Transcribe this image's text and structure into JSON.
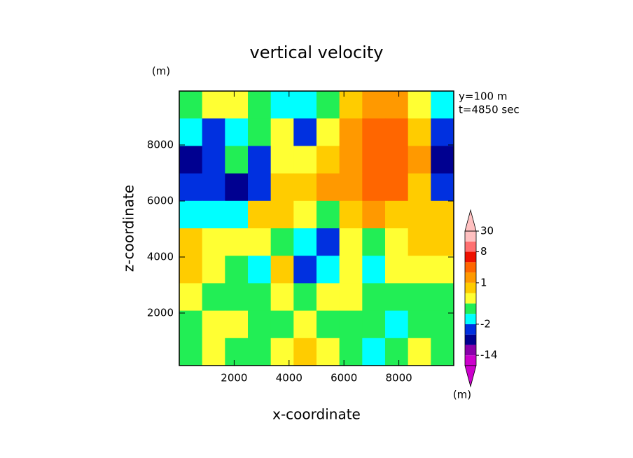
{
  "chart_data": {
    "type": "contour",
    "title": "vertical velocity",
    "subtitle_lines": [
      "y=100 m",
      "t=4850 sec"
    ],
    "x_label": "x-coordinate",
    "y_label": "z-coordinate",
    "x_unit": "(m)",
    "colorbar_unit": "(m)",
    "xlim": [
      0,
      10000
    ],
    "ylim": [
      125,
      9925
    ],
    "xticks": [
      2000,
      4000,
      6000,
      8000
    ],
    "yticks": [
      2000,
      4000,
      6000,
      8000
    ],
    "x": [
      417,
      1250,
      2083,
      2917,
      3750,
      4583,
      5417,
      6250,
      7083,
      7917,
      8750,
      9583
    ],
    "y": [
      9435,
      8455,
      7475,
      6495,
      5515,
      4535,
      3555,
      2575,
      1595,
      615
    ],
    "z": [
      [
        -0.5,
        0.2,
        0.2,
        -0.5,
        -1.5,
        -1.5,
        -0.5,
        0.7,
        1.5,
        1.5,
        0.2,
        -1.5
      ],
      [
        -1.5,
        -3,
        -1.5,
        -0.5,
        0.2,
        -3,
        0.2,
        1.5,
        3,
        3,
        0.7,
        -3
      ],
      [
        -6,
        -3,
        -0.5,
        -3,
        0.2,
        0.2,
        0.7,
        1.5,
        3,
        3,
        1.5,
        -6
      ],
      [
        -3,
        -3,
        -6,
        -3,
        0.7,
        0.7,
        1.5,
        1.5,
        3,
        3,
        0.7,
        -3
      ],
      [
        -1.5,
        -1.5,
        -1.5,
        0.7,
        0.7,
        0.2,
        -0.5,
        0.7,
        1.5,
        0.7,
        0.7,
        0.7
      ],
      [
        0.7,
        0.2,
        0.2,
        0.2,
        -0.5,
        -1.5,
        -3,
        0.2,
        -0.5,
        0.2,
        0.7,
        0.7
      ],
      [
        0.7,
        0.2,
        -0.5,
        -1.5,
        0.7,
        -3,
        -1.5,
        0.2,
        -1.5,
        0.2,
        0.2,
        0.2
      ],
      [
        0.2,
        -0.5,
        -0.5,
        -0.5,
        0.2,
        -0.5,
        0.2,
        0.2,
        -0.5,
        -0.5,
        -0.5,
        -0.5
      ],
      [
        -0.5,
        0.2,
        0.2,
        -0.5,
        -0.5,
        0.2,
        -0.5,
        -0.5,
        -0.5,
        -1.5,
        -0.5,
        -0.5
      ],
      [
        -0.5,
        0.2,
        -0.5,
        -0.5,
        0.2,
        0.7,
        0.2,
        -0.5,
        -1.5,
        -0.5,
        0.2,
        -0.5
      ]
    ],
    "levels": [
      -30,
      -14,
      -8,
      -4,
      -2,
      -1,
      0,
      0.5,
      1,
      2,
      4,
      8,
      16,
      30
    ],
    "colors": [
      "#cc00cc",
      "#8800aa",
      "#000090",
      "#0030e0",
      "#00ffff",
      "#22ee55",
      "#ffff33",
      "#ffcc00",
      "#ff9900",
      "#ff6600",
      "#ee1100",
      "#ff7070",
      "#ffc0c0"
    ],
    "colorbar_ticks": [
      30,
      8,
      1,
      -2,
      -14
    ]
  }
}
